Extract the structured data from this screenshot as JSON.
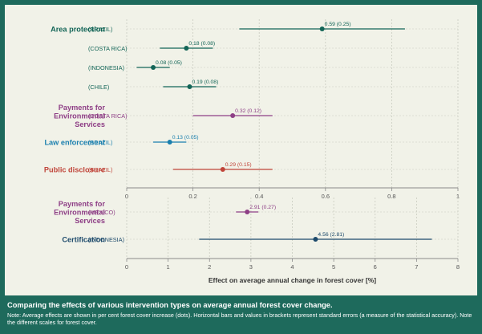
{
  "colors": {
    "background": "#1e6a5c",
    "panel": "#f1f2e8",
    "area_protection": "#136557",
    "payments": "#8e3f86",
    "law_enforcement": "#1a7fae",
    "public_disclosure": "#c0453a",
    "certification": "#1d4a6b",
    "axis": "#8a8a8a",
    "grid": "#c9cbbf"
  },
  "chart_data": [
    {
      "type": "scatter",
      "xlim": [
        0,
        1
      ],
      "xticks": [
        0,
        0.2,
        0.4,
        0.6,
        0.8,
        1
      ],
      "tick_labels": [
        "0",
        "0.2",
        "0.4",
        "0.6",
        "0.8",
        "1"
      ],
      "grid": true,
      "rows": [
        {
          "category": "Area protection",
          "country": "(BRAZIL)",
          "mean": 0.59,
          "se": 0.25,
          "label": "0.59 (0.25)",
          "color_key": "area_protection"
        },
        {
          "category": "",
          "country": "(COSTA RICA)",
          "mean": 0.18,
          "se": 0.08,
          "label": "0.18 (0.08)",
          "color_key": "area_protection"
        },
        {
          "category": "",
          "country": "(INDONESIA)",
          "mean": 0.08,
          "se": 0.05,
          "label": "0.08 (0.05)",
          "color_key": "area_protection"
        },
        {
          "category": "",
          "country": "(CHILE)",
          "mean": 0.19,
          "se": 0.08,
          "label": "0.19 (0.08)",
          "color_key": "area_protection"
        },
        {
          "category": "Payments for Environmental Services",
          "category_lines": [
            "Payments for",
            "Environmental",
            "Services"
          ],
          "country": "(COSTA RICA)",
          "mean": 0.32,
          "se": 0.12,
          "label": "0.32 (0.12)",
          "color_key": "payments"
        },
        {
          "category": "Law enforcement",
          "country": "(BRAZIL)",
          "mean": 0.13,
          "se": 0.05,
          "label": "0.13 (0.05)",
          "color_key": "law_enforcement"
        },
        {
          "category": "Public disclosure",
          "country": "(BRAZIL)",
          "mean": 0.29,
          "se": 0.15,
          "label": "0.29 (0.15)",
          "color_key": "public_disclosure"
        }
      ]
    },
    {
      "type": "scatter",
      "xlim": [
        0,
        8
      ],
      "xticks": [
        0,
        1,
        2,
        3,
        4,
        5,
        6,
        7,
        8
      ],
      "tick_labels": [
        "0",
        "1",
        "2",
        "3",
        "4",
        "5",
        "6",
        "7",
        "8"
      ],
      "grid": true,
      "xlabel": "Effect on average annual change in forest cover [%]",
      "rows": [
        {
          "category": "Payments for Environmental Services",
          "category_lines": [
            "Payments for",
            "Environmental",
            "Services"
          ],
          "country": "(MEXICO)",
          "mean": 2.91,
          "se": 0.27,
          "label": "2.91 (0.27)",
          "color_key": "payments"
        },
        {
          "category": "Certification",
          "country": "(INDONESIA)",
          "mean": 4.56,
          "se": 2.81,
          "label": "4.56 (2.81)",
          "color_key": "certification"
        }
      ]
    }
  ],
  "caption": {
    "title": "Comparing the effects of various intervention types on average annual forest cover change.",
    "note": "Note: Average effects are shown in per cent forest cover increase (dots). Horizontal bars and values in brackets represent standard errors (a measure of the statistical accuracy). Note the different scales for forest cover."
  }
}
